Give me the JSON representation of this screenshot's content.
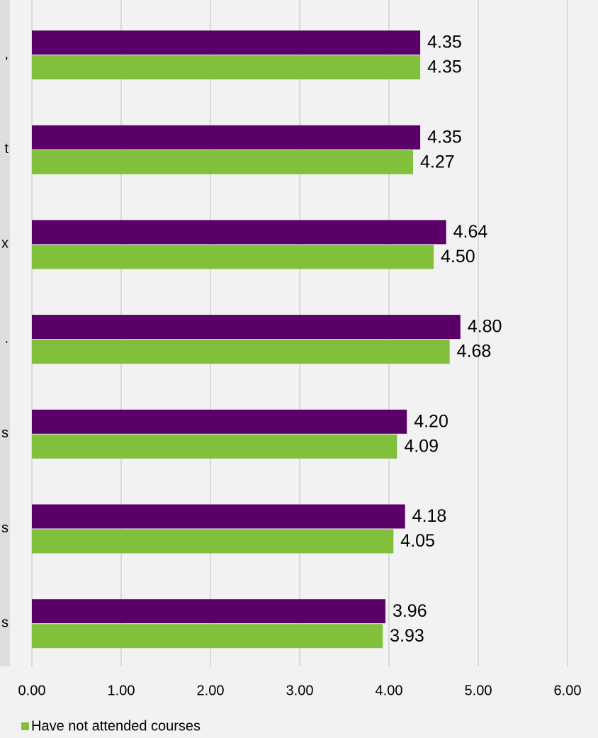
{
  "chart_data": {
    "type": "barh",
    "categories": [
      ",",
      "t",
      "x",
      ".",
      "s",
      "s",
      "s"
    ],
    "series": [
      {
        "color": "#5b0068",
        "values": [
          4.35,
          4.35,
          4.64,
          4.8,
          4.2,
          4.18,
          3.96
        ],
        "value_labels": [
          "4.35",
          "4.35",
          "4.64",
          "4.80",
          "4.20",
          "4.18",
          "3.96"
        ]
      },
      {
        "name": "Have not attended courses",
        "color": "#80c03a",
        "values": [
          4.35,
          4.27,
          4.5,
          4.68,
          4.09,
          4.05,
          3.93
        ],
        "value_labels": [
          "4.35",
          "4.27",
          "4.50",
          "4.68",
          "4.09",
          "4.05",
          "3.93"
        ]
      }
    ],
    "xlim": [
      0,
      6
    ],
    "xticks": [
      {
        "value": 0,
        "label": "0.00"
      },
      {
        "value": 1,
        "label": "1.00"
      },
      {
        "value": 2,
        "label": "2.00"
      },
      {
        "value": 3,
        "label": "3.00"
      },
      {
        "value": 4,
        "label": "4.00"
      },
      {
        "value": 5,
        "label": "5.00"
      },
      {
        "value": 6,
        "label": "6.00"
      }
    ],
    "grid": true
  }
}
